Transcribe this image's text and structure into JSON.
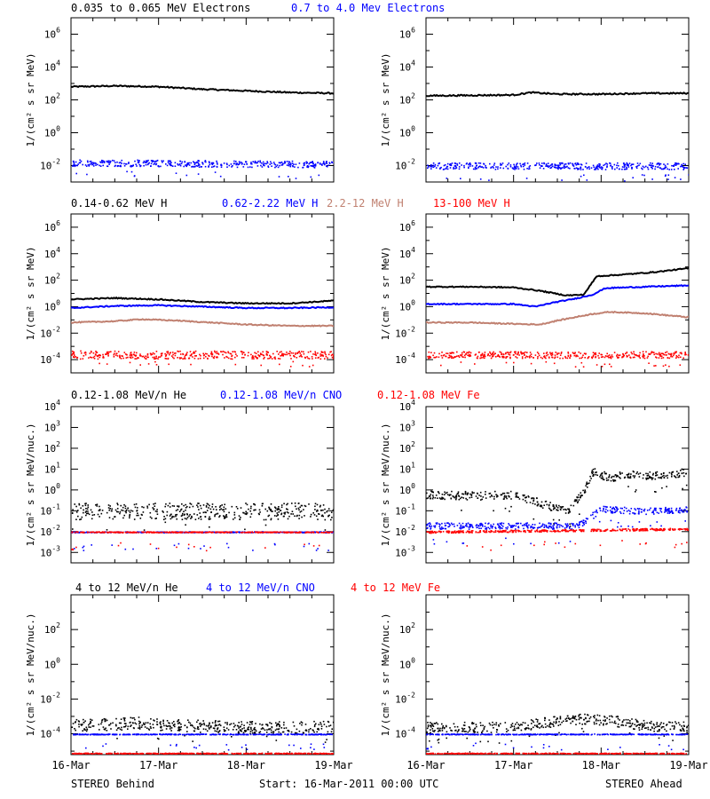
{
  "chart_data": [
    {
      "type": "scatter",
      "row": 0,
      "col": 0,
      "ylabel": "1/(cm² s sr MeV)",
      "yscale": "log",
      "ylim_exp": [
        -3,
        7
      ],
      "ytick_exps": [
        -2,
        0,
        2,
        4,
        6
      ],
      "xlim_days": [
        0,
        3
      ],
      "legend": [
        {
          "name": "0.035 to 0.065 MeV Electrons",
          "color": "#000000"
        },
        {
          "name": "0.7 to 4.0 Mev Electrons",
          "color": "#0000ff"
        }
      ],
      "series": [
        {
          "name": "0.035 to 0.065 MeV Electrons",
          "color": "#000000",
          "style": "line",
          "x": [
            0,
            0.5,
            1,
            1.5,
            2,
            2.5,
            3
          ],
          "y_exp": [
            2.8,
            2.85,
            2.8,
            2.65,
            2.55,
            2.45,
            2.4
          ]
        },
        {
          "name": "0.7 to 4.0 Mev Electrons",
          "color": "#0000ff",
          "style": "dots",
          "x": [
            0,
            3
          ],
          "y_exp": [
            -1.8,
            -1.9
          ],
          "spread": 0.2
        }
      ]
    },
    {
      "type": "scatter",
      "row": 0,
      "col": 1,
      "ylabel": "1/(cm² s sr MeV)",
      "yscale": "log",
      "ylim_exp": [
        -3,
        7
      ],
      "ytick_exps": [
        -2,
        0,
        2,
        4,
        6
      ],
      "xlim_days": [
        0,
        3
      ],
      "series": [
        {
          "name": "0.035 to 0.065 MeV Electrons",
          "color": "#000000",
          "style": "line",
          "x": [
            0,
            1,
            1.2,
            1.5,
            2,
            2.5,
            3
          ],
          "y_exp": [
            2.25,
            2.3,
            2.45,
            2.35,
            2.35,
            2.4,
            2.4
          ]
        },
        {
          "name": "0.7 to 4.0 Mev Electrons",
          "color": "#0000ff",
          "style": "dots",
          "x": [
            0,
            3
          ],
          "y_exp": [
            -2.0,
            -2.0
          ],
          "spread": 0.2
        }
      ]
    },
    {
      "type": "scatter",
      "row": 1,
      "col": 0,
      "ylabel": "1/(cm² s sr MeV)",
      "yscale": "log",
      "ylim_exp": [
        -5,
        7
      ],
      "ytick_exps": [
        -4,
        -2,
        0,
        2,
        4,
        6
      ],
      "xlim_days": [
        0,
        3
      ],
      "legend": [
        {
          "name": "0.14-0.62 MeV H",
          "color": "#000000"
        },
        {
          "name": "0.62-2.22 MeV H",
          "color": "#0000ff"
        },
        {
          "name": "2.2-12 MeV H",
          "color": "#c08070"
        },
        {
          "name": "13-100 MeV H",
          "color": "#ff0000"
        }
      ],
      "series": [
        {
          "name": "0.14-0.62 MeV H",
          "color": "#000000",
          "style": "line",
          "x": [
            0,
            0.5,
            1,
            1.5,
            2,
            2.5,
            3
          ],
          "y_exp": [
            0.55,
            0.65,
            0.55,
            0.35,
            0.25,
            0.25,
            0.45
          ]
        },
        {
          "name": "0.62-2.22 MeV H",
          "color": "#0000ff",
          "style": "line",
          "x": [
            0,
            0.5,
            1,
            1.5,
            2,
            2.5,
            3
          ],
          "y_exp": [
            -0.1,
            0.05,
            0.1,
            0.0,
            -0.1,
            -0.1,
            -0.05
          ]
        },
        {
          "name": "2.2-12 MeV H",
          "color": "#c08070",
          "style": "line",
          "x": [
            0,
            0.5,
            0.8,
            1.2,
            1.6,
            2,
            2.5,
            3
          ],
          "y_exp": [
            -1.2,
            -1.1,
            -0.95,
            -1.05,
            -1.2,
            -1.35,
            -1.45,
            -1.45
          ]
        },
        {
          "name": "13-100 MeV H",
          "color": "#ff0000",
          "style": "dots",
          "x": [
            0,
            3
          ],
          "y_exp": [
            -3.6,
            -3.6
          ],
          "spread": 0.3
        }
      ]
    },
    {
      "type": "scatter",
      "row": 1,
      "col": 1,
      "ylabel": "1/(cm² s sr MeV)",
      "yscale": "log",
      "ylim_exp": [
        -5,
        7
      ],
      "ytick_exps": [
        -4,
        -2,
        0,
        2,
        4,
        6
      ],
      "xlim_days": [
        0,
        3
      ],
      "series": [
        {
          "name": "0.14-0.62 MeV H",
          "color": "#000000",
          "style": "line",
          "x": [
            0,
            0.5,
            1,
            1.3,
            1.6,
            1.8,
            1.95,
            2.2,
            2.6,
            3
          ],
          "y_exp": [
            1.5,
            1.5,
            1.45,
            1.2,
            0.85,
            0.9,
            2.3,
            2.4,
            2.6,
            2.9
          ]
        },
        {
          "name": "0.62-2.22 MeV H",
          "color": "#0000ff",
          "style": "line",
          "x": [
            0,
            0.5,
            1,
            1.25,
            1.45,
            1.7,
            1.9,
            2.05,
            2.5,
            3
          ],
          "y_exp": [
            0.2,
            0.2,
            0.2,
            0.0,
            0.3,
            0.6,
            0.9,
            1.4,
            1.5,
            1.6
          ]
        },
        {
          "name": "2.2-12 MeV H",
          "color": "#c08070",
          "style": "line",
          "x": [
            0,
            0.5,
            1,
            1.3,
            1.5,
            1.7,
            1.9,
            2.1,
            2.5,
            3
          ],
          "y_exp": [
            -1.2,
            -1.2,
            -1.3,
            -1.35,
            -1.05,
            -0.8,
            -0.55,
            -0.4,
            -0.5,
            -0.8
          ]
        },
        {
          "name": "13-100 MeV H",
          "color": "#ff0000",
          "style": "dots",
          "x": [
            0,
            3
          ],
          "y_exp": [
            -3.6,
            -3.6
          ],
          "spread": 0.25
        }
      ]
    },
    {
      "type": "scatter",
      "row": 2,
      "col": 0,
      "ylabel": "1/(cm² s sr MeV/nuc.)",
      "yscale": "log",
      "ylim_exp": [
        -3.5,
        4
      ],
      "ytick_exps": [
        -3,
        -2,
        -1,
        0,
        1,
        2,
        3,
        4
      ],
      "xlim_days": [
        0,
        3
      ],
      "legend": [
        {
          "name": "0.12-1.08 MeV/n He",
          "color": "#000000"
        },
        {
          "name": "0.12-1.08 MeV/n CNO",
          "color": "#0000ff"
        },
        {
          "name": "0.12-1.08 MeV Fe",
          "color": "#ff0000"
        }
      ],
      "series": [
        {
          "name": "0.12-1.08 MeV/n He",
          "color": "#000000",
          "style": "dots",
          "x": [
            0,
            3
          ],
          "y_exp": [
            -1.0,
            -1.0
          ],
          "spread": 0.4
        },
        {
          "name": "0.12-1.08 MeV/n CNO",
          "color": "#0000ff",
          "style": "dots",
          "x": [
            0,
            3
          ],
          "y_exp": [
            -2.0,
            -2.0
          ],
          "spread": 0.02
        },
        {
          "name": "0.12-1.08 MeV Fe",
          "color": "#ff0000",
          "style": "dots",
          "x": [
            0,
            3
          ],
          "y_exp": [
            -2.0,
            -2.0
          ],
          "spread": 0.02
        }
      ]
    },
    {
      "type": "scatter",
      "row": 2,
      "col": 1,
      "ylabel": "1/(cm² s sr MeV/nuc.)",
      "yscale": "log",
      "ylim_exp": [
        -3.5,
        4
      ],
      "ytick_exps": [
        -3,
        -2,
        -1,
        0,
        1,
        2,
        3,
        4
      ],
      "xlim_days": [
        0,
        3
      ],
      "series": [
        {
          "name": "0.12-1.08 MeV/n He",
          "color": "#000000",
          "style": "dots",
          "x": [
            0,
            0.6,
            1.0,
            1.3,
            1.5,
            1.65,
            1.8,
            1.9,
            2.1,
            2.3,
            2.6,
            3
          ],
          "y_exp": [
            -0.2,
            -0.25,
            -0.2,
            -0.6,
            -0.9,
            -0.9,
            0.0,
            0.9,
            0.6,
            0.8,
            0.7,
            0.9
          ],
          "spread": 0.2
        },
        {
          "name": "0.12-1.08 MeV/n CNO",
          "color": "#0000ff",
          "style": "dots",
          "x": [
            0,
            1.7,
            1.8,
            2.0,
            2.5,
            3
          ],
          "y_exp": [
            -1.7,
            -1.7,
            -1.5,
            -0.9,
            -1.0,
            -0.9
          ],
          "spread": 0.15
        },
        {
          "name": "0.12-1.08 MeV Fe",
          "color": "#ff0000",
          "style": "dots",
          "x": [
            0,
            3
          ],
          "y_exp": [
            -2.0,
            -1.85
          ],
          "spread": 0.05
        }
      ]
    },
    {
      "type": "scatter",
      "row": 3,
      "col": 0,
      "ylabel": "1/(cm² s sr MeV/nuc.)",
      "yscale": "log",
      "ylim_exp": [
        -5.2,
        4
      ],
      "ytick_exps": [
        -4,
        -2,
        0,
        2
      ],
      "xlim_days": [
        0,
        3
      ],
      "xticks": [
        "16-Mar",
        "17-Mar",
        "18-Mar",
        "19-Mar"
      ],
      "legend": [
        {
          "name": "4 to 12 MeV/n He",
          "color": "#000000"
        },
        {
          "name": "4 to 12 MeV/n CNO",
          "color": "#0000ff"
        },
        {
          "name": "4 to 12 MeV Fe",
          "color": "#ff0000"
        }
      ],
      "series": [
        {
          "name": "4 to 12 MeV/n He",
          "color": "#000000",
          "style": "dots",
          "x": [
            0,
            0.8,
            1.2,
            2,
            3
          ],
          "y_exp": [
            -3.5,
            -3.35,
            -3.5,
            -3.6,
            -3.6
          ],
          "spread": 0.35
        },
        {
          "name": "4 to 12 MeV/n CNO",
          "color": "#0000ff",
          "style": "dots",
          "x": [
            0,
            3
          ],
          "y_exp": [
            -4.0,
            -4.0
          ],
          "spread": 0.02
        },
        {
          "name": "4 to 12 MeV Fe",
          "color": "#ff0000",
          "style": "dots",
          "x": [
            0,
            3
          ],
          "y_exp": [
            -5.1,
            -5.1
          ],
          "spread": 0.02
        }
      ]
    },
    {
      "type": "scatter",
      "row": 3,
      "col": 1,
      "ylabel": "1/(cm² s sr MeV/nuc.)",
      "yscale": "log",
      "ylim_exp": [
        -5.2,
        4
      ],
      "ytick_exps": [
        -4,
        -2,
        0,
        2
      ],
      "xlim_days": [
        0,
        3
      ],
      "xticks": [
        "16-Mar",
        "17-Mar",
        "18-Mar",
        "19-Mar"
      ],
      "series": [
        {
          "name": "4 to 12 MeV/n He",
          "color": "#000000",
          "style": "dots",
          "x": [
            0,
            1,
            1.4,
            1.8,
            2.1,
            2.5,
            3
          ],
          "y_exp": [
            -3.6,
            -3.6,
            -3.3,
            -3.1,
            -3.2,
            -3.5,
            -3.6
          ],
          "spread": 0.3
        },
        {
          "name": "4 to 12 MeV/n CNO",
          "color": "#0000ff",
          "style": "dots",
          "x": [
            0,
            3
          ],
          "y_exp": [
            -4.0,
            -4.0
          ],
          "spread": 0.02
        },
        {
          "name": "4 to 12 MeV Fe",
          "color": "#ff0000",
          "style": "dots",
          "x": [
            0,
            3
          ],
          "y_exp": [
            -5.1,
            -5.1
          ],
          "spread": 0.02
        }
      ]
    }
  ],
  "footer": {
    "left": "STEREO Behind",
    "center": "Start: 16-Mar-2011 00:00 UTC",
    "right": "STEREO Ahead"
  }
}
